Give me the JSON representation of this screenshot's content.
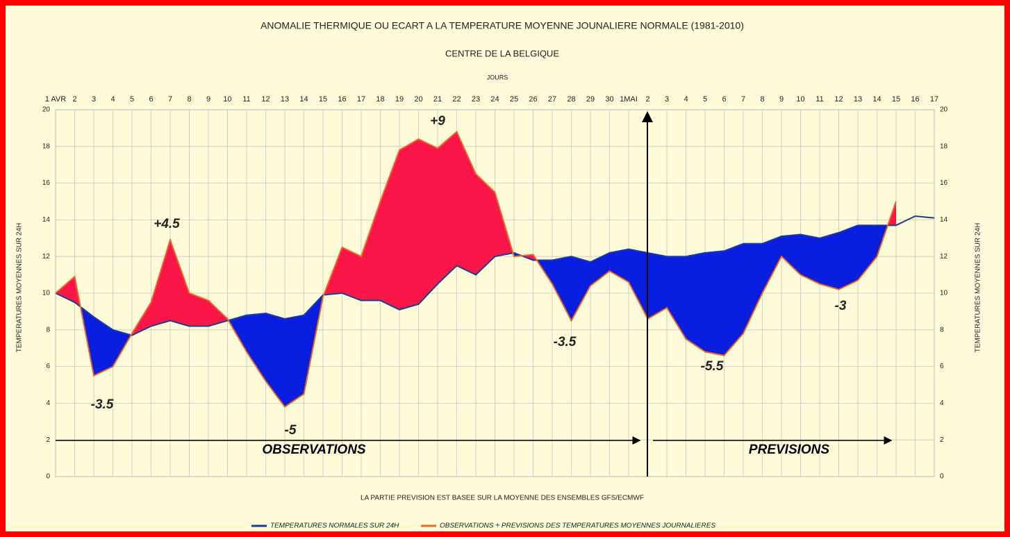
{
  "chart_data": {
    "type": "line",
    "title": "ANOMALIE THERMIQUE OU ECART A LA TEMPERATURE MOYENNE JOUNALIERE NORMALE (1981-2010)",
    "subtitle": "CENTRE DE LA BELGIQUE",
    "x_label": "JOURS",
    "y_label": "TEMPERATURES MOYENNES SUR 24H",
    "y2_label": "TEMPERATURES MOYENNES SUR 24H",
    "footnote": "LA PARTIE PREVISION EST BASEE SUR LA MOYENNE DES ENSEMBLES GFS/ECMWF",
    "phases": [
      "OBSERVATIONS",
      "PREVISIONS"
    ],
    "categories": [
      "1 AVR",
      "2",
      "3",
      "4",
      "5",
      "6",
      "7",
      "8",
      "9",
      "10",
      "11",
      "12",
      "13",
      "14",
      "15",
      "16",
      "17",
      "18",
      "19",
      "20",
      "21",
      "22",
      "23",
      "24",
      "25",
      "26",
      "27",
      "28",
      "29",
      "30",
      "1MAI",
      "2",
      "3",
      "4",
      "5",
      "6",
      "7",
      "8",
      "9",
      "10",
      "11",
      "12",
      "13",
      "14",
      "15",
      "16",
      "17"
    ],
    "series": [
      {
        "name": "TEMPERATURES NORMALES SUR 24H",
        "color": "#1f3d8f",
        "values": [
          10.0,
          9.5,
          8.7,
          8.0,
          7.7,
          8.2,
          8.5,
          8.2,
          8.2,
          8.5,
          8.8,
          8.9,
          8.6,
          8.8,
          9.9,
          10.0,
          9.6,
          9.6,
          9.1,
          9.4,
          10.5,
          11.5,
          11.0,
          12.0,
          12.2,
          11.8,
          11.8,
          12.0,
          11.7,
          12.2,
          12.4,
          12.2,
          12.0,
          12.0,
          12.2,
          12.3,
          12.7,
          12.7,
          13.1,
          13.2,
          13.0,
          13.3,
          13.7,
          13.7,
          13.7,
          14.2,
          14.1
        ]
      },
      {
        "name": "OBSERVATIONS + PREVISIONS DES TEMPERATURES MOYENNES JOURNALIERES",
        "color": "#e8692a",
        "values": [
          10.0,
          10.9,
          5.5,
          6.0,
          7.8,
          9.5,
          12.9,
          10.0,
          9.6,
          8.6,
          6.8,
          5.2,
          3.8,
          4.5,
          9.8,
          12.5,
          12.0,
          15.0,
          17.8,
          18.4,
          17.9,
          18.8,
          16.5,
          15.5,
          12.0,
          12.1,
          10.5,
          8.5,
          10.4,
          11.2,
          10.6,
          8.6,
          9.2,
          7.5,
          6.8,
          6.6,
          7.8,
          10.0,
          12.0,
          11.0,
          10.5,
          10.2,
          10.7,
          12.0,
          15.0,
          null,
          null
        ]
      }
    ],
    "fill_above": "#fa1747",
    "fill_below": "#0a1ee0",
    "annotations": [
      "+4.5",
      "+9",
      "-3.5",
      "-5",
      "-3.5",
      "-5.5",
      "-3"
    ],
    "ylim": [
      0,
      20
    ],
    "yticks": [
      0,
      2,
      4,
      6,
      8,
      10,
      12,
      14,
      16,
      18,
      20
    ],
    "y2lim": [
      0,
      20
    ],
    "y2ticks": [
      0,
      2,
      4,
      6,
      8,
      10,
      12,
      14,
      16,
      18,
      20
    ],
    "grid": true
  }
}
